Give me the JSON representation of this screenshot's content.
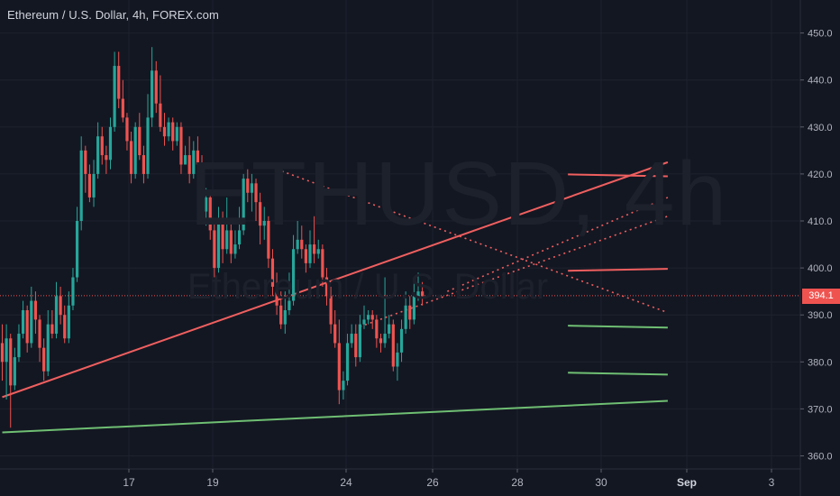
{
  "header": {
    "title": "Ethereum / U.S. Dollar, 4h, FOREX.com"
  },
  "watermark": {
    "symbol": "ETHUSD, 4h",
    "name": "Ethereum / U.S. Dollar"
  },
  "current_price": {
    "label": "394.1",
    "value": 394.1,
    "color": "#ef5350"
  },
  "colors": {
    "background": "#131722",
    "grid": "#1e222d",
    "up": "#26a69a",
    "down": "#ef5350",
    "resistance": "#f05f5f",
    "support": "#6fbf73",
    "axis_text": "#b2b5be"
  },
  "chart_data": {
    "type": "candlestick",
    "title": "Ethereum / U.S. Dollar, 4h, FOREX.com",
    "ylim": [
      357,
      453
    ],
    "y_ticks": [
      "360.0",
      "370.0",
      "380.0",
      "390.0",
      "400.0",
      "410.0",
      "420.0",
      "430.0",
      "440.0",
      "450.0"
    ],
    "x_ticks": [
      "17",
      "19",
      "24",
      "26",
      "28",
      "30",
      "Sep",
      "3"
    ],
    "grid": true,
    "candles": [
      [
        384,
        380,
        388,
        376
      ],
      [
        380,
        385,
        388,
        372
      ],
      [
        385,
        375,
        386,
        366
      ],
      [
        375,
        381,
        383,
        374
      ],
      [
        381,
        386,
        388,
        380
      ],
      [
        386,
        391,
        393,
        385
      ],
      [
        391,
        384,
        392,
        382
      ],
      [
        384,
        393,
        396,
        383
      ],
      [
        393,
        389,
        395,
        386
      ],
      [
        389,
        383,
        390,
        380
      ],
      [
        383,
        378,
        385,
        376
      ],
      [
        378,
        388,
        391,
        377
      ],
      [
        388,
        386,
        391,
        385
      ],
      [
        386,
        394,
        397,
        385
      ],
      [
        394,
        390,
        396,
        388
      ],
      [
        390,
        385,
        392,
        384
      ],
      [
        385,
        392,
        395,
        384
      ],
      [
        392,
        398,
        400,
        391
      ],
      [
        398,
        410,
        413,
        397
      ],
      [
        410,
        425,
        428,
        408
      ],
      [
        425,
        420,
        426,
        416
      ],
      [
        420,
        415,
        422,
        414
      ],
      [
        415,
        420,
        423,
        413
      ],
      [
        420,
        428,
        431,
        419
      ],
      [
        428,
        424,
        430,
        422
      ],
      [
        424,
        423,
        426,
        420
      ],
      [
        423,
        430,
        432,
        421
      ],
      [
        430,
        443,
        446,
        429
      ],
      [
        443,
        436,
        446,
        434
      ],
      [
        436,
        432,
        440,
        431
      ],
      [
        432,
        427,
        433,
        425
      ],
      [
        427,
        420,
        429,
        418
      ],
      [
        420,
        430,
        431,
        419
      ],
      [
        430,
        424,
        433,
        423
      ],
      [
        424,
        420,
        426,
        418
      ],
      [
        420,
        432,
        437,
        419
      ],
      [
        432,
        442,
        447,
        430
      ],
      [
        442,
        435,
        444,
        433
      ],
      [
        435,
        430,
        441,
        429
      ],
      [
        430,
        428,
        433,
        426
      ],
      [
        428,
        431,
        432,
        427
      ],
      [
        431,
        427,
        432,
        425
      ],
      [
        427,
        430,
        431,
        426
      ],
      [
        430,
        422,
        431,
        420
      ],
      [
        422,
        424,
        426,
        422
      ],
      [
        424,
        420,
        428,
        418
      ],
      [
        420,
        425,
        427,
        419
      ],
      [
        425,
        422,
        428,
        420
      ],
      [
        422,
        412,
        424,
        410
      ],
      [
        412,
        415,
        417,
        409
      ],
      [
        415,
        408,
        416,
        406
      ],
      [
        408,
        400,
        410,
        398
      ],
      [
        400,
        410,
        413,
        399
      ],
      [
        410,
        404,
        412,
        401
      ],
      [
        404,
        408,
        415,
        403
      ],
      [
        408,
        403,
        410,
        401
      ],
      [
        403,
        405,
        408,
        402
      ],
      [
        405,
        408,
        413,
        404
      ],
      [
        408,
        419,
        420,
        407
      ],
      [
        419,
        416,
        421,
        414
      ],
      [
        416,
        418,
        420,
        412
      ],
      [
        418,
        414,
        419,
        410
      ],
      [
        414,
        409,
        416,
        405
      ],
      [
        409,
        410,
        413,
        406
      ],
      [
        410,
        402,
        411,
        400
      ],
      [
        402,
        396,
        404,
        394
      ],
      [
        396,
        392,
        399,
        390
      ],
      [
        392,
        388,
        395,
        387
      ],
      [
        388,
        391,
        395,
        386
      ],
      [
        391,
        393,
        399,
        390
      ],
      [
        393,
        404,
        407,
        392
      ],
      [
        404,
        406,
        410,
        403
      ],
      [
        406,
        404,
        409,
        402
      ],
      [
        404,
        401,
        405,
        399
      ],
      [
        401,
        405,
        408,
        400
      ],
      [
        405,
        403,
        411,
        401
      ],
      [
        403,
        404,
        406,
        402
      ],
      [
        404,
        398,
        405,
        396
      ],
      [
        398,
        394,
        400,
        392
      ],
      [
        394,
        388,
        396,
        386
      ],
      [
        388,
        384,
        391,
        383
      ],
      [
        384,
        374,
        389,
        371
      ],
      [
        374,
        376,
        378,
        372
      ],
      [
        376,
        384,
        386,
        375
      ],
      [
        384,
        386,
        388,
        383
      ],
      [
        386,
        381,
        388,
        379
      ],
      [
        381,
        388,
        390,
        380
      ],
      [
        388,
        389,
        392,
        387
      ],
      [
        389,
        390,
        391,
        388
      ],
      [
        390,
        389,
        391,
        387
      ],
      [
        389,
        385,
        390,
        383
      ],
      [
        385,
        384,
        386,
        382
      ],
      [
        384,
        386,
        398,
        383
      ],
      [
        386,
        388,
        390,
        385
      ],
      [
        388,
        379,
        389,
        378
      ],
      [
        379,
        382,
        384,
        376
      ],
      [
        382,
        387,
        389,
        380
      ],
      [
        387,
        392,
        395,
        386
      ],
      [
        392,
        389,
        394,
        387
      ],
      [
        389,
        394,
        397,
        388
      ],
      [
        394,
        395,
        399,
        393
      ],
      [
        395,
        394,
        397,
        392
      ]
    ],
    "lines": [
      {
        "name": "rising resistance",
        "style": "solid",
        "color": "#f05f5f",
        "from": [
          0,
          372.5
        ],
        "to": [
          160,
          422.5
        ]
      },
      {
        "name": "support",
        "style": "solid",
        "color": "#6fbf73",
        "from": [
          0,
          365.0
        ],
        "to": [
          160,
          371.7
        ]
      },
      {
        "name": "descending dotted",
        "style": "dotted",
        "color": "#f05f5f",
        "from": [
          66,
          421.0
        ],
        "to": [
          160,
          390.5
        ]
      },
      {
        "name": "channel upper dotted",
        "style": "dotted",
        "color": "#f05f5f",
        "from": [
          107,
          395.0
        ],
        "to": [
          160,
          415.0
        ]
      },
      {
        "name": "channel lower dotted",
        "style": "dotted",
        "color": "#f05f5f",
        "from": [
          86,
          387.5
        ],
        "to": [
          160,
          411.0
        ]
      },
      {
        "name": "target 1",
        "style": "solid",
        "color": "#f05f5f",
        "from": [
          136,
          419.9
        ],
        "to": [
          160,
          419.5
        ]
      },
      {
        "name": "target 2",
        "style": "solid",
        "color": "#f05f5f",
        "from": [
          136,
          399.4
        ],
        "to": [
          160,
          399.8
        ]
      },
      {
        "name": "target 3",
        "style": "solid",
        "color": "#6fbf73",
        "from": [
          136,
          387.7
        ],
        "to": [
          160,
          387.3
        ]
      },
      {
        "name": "target 4",
        "style": "solid",
        "color": "#6fbf73",
        "from": [
          136,
          377.7
        ],
        "to": [
          160,
          377.3
        ]
      }
    ],
    "current_price_line": 394.1
  }
}
